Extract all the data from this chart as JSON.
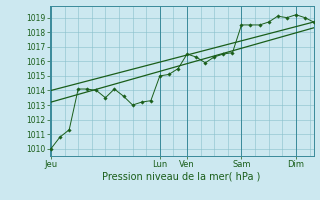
{
  "background_color": "#cce8f0",
  "grid_color": "#88c0cc",
  "line_color": "#1a5e1a",
  "marker_color": "#1a5e1a",
  "xlabel": "Pression niveau de la mer( hPa )",
  "ylim": [
    1009.5,
    1019.8
  ],
  "yticks": [
    1010,
    1011,
    1012,
    1013,
    1014,
    1015,
    1016,
    1017,
    1018,
    1019
  ],
  "x_day_labels": [
    "Jeu",
    "Lun",
    "Ven",
    "Sam",
    "Dim"
  ],
  "x_day_positions": [
    0.0,
    4.0,
    5.0,
    7.0,
    9.0
  ],
  "xlim": [
    -0.05,
    9.65
  ],
  "series1_x": [
    0.0,
    0.33,
    0.67,
    1.0,
    1.33,
    1.67,
    2.0,
    2.33,
    2.67,
    3.0,
    3.33,
    3.67,
    4.0,
    4.33,
    4.67,
    5.0,
    5.33,
    5.67,
    6.0,
    6.33,
    6.67,
    7.0,
    7.33,
    7.67,
    8.0,
    8.33,
    8.67,
    9.0,
    9.33,
    9.65
  ],
  "series1_y": [
    1010.0,
    1010.8,
    1011.3,
    1014.1,
    1014.1,
    1014.0,
    1013.5,
    1014.1,
    1013.6,
    1013.0,
    1013.2,
    1013.3,
    1015.0,
    1015.1,
    1015.5,
    1016.5,
    1016.3,
    1015.9,
    1016.3,
    1016.5,
    1016.6,
    1018.5,
    1018.5,
    1018.5,
    1018.7,
    1019.1,
    1019.0,
    1019.2,
    1019.0,
    1018.7
  ],
  "series2_x": [
    0.0,
    9.65
  ],
  "series2_y": [
    1013.2,
    1018.3
  ],
  "series3_x": [
    0.0,
    9.65
  ],
  "series3_y": [
    1014.0,
    1018.7
  ],
  "xlabel_fontsize": 7,
  "ytick_fontsize": 5.5,
  "xtick_fontsize": 6
}
